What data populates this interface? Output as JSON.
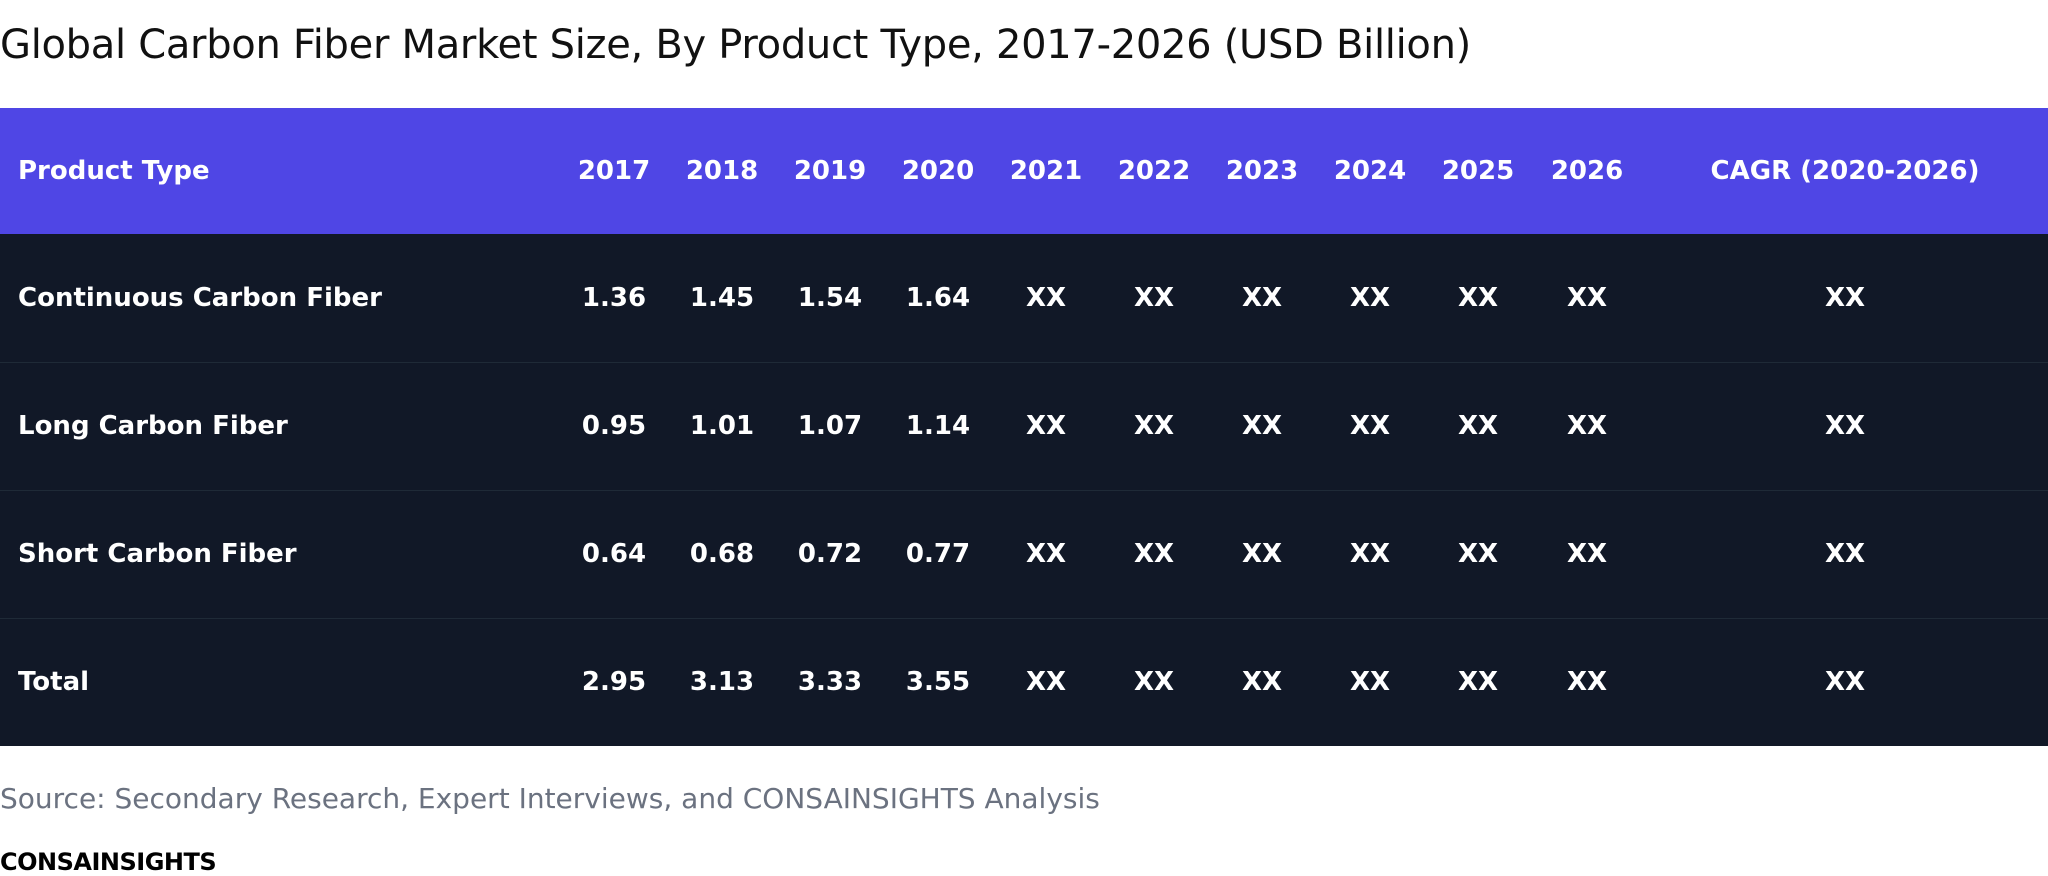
{
  "title": "Global Carbon Fiber Market Size, By Product Type, 2017-2026 (USD Billion)",
  "colors": {
    "header_bg": "#4f46e5",
    "body_bg": "#111827",
    "text_light": "#ffffff",
    "source_text": "#6b7280"
  },
  "table": {
    "headers": [
      "Product Type",
      "2017",
      "2018",
      "2019",
      "2020",
      "2021",
      "2022",
      "2023",
      "2024",
      "2025",
      "2026",
      "CAGR (2020-2026)"
    ],
    "rows": [
      [
        "Continuous Carbon Fiber",
        "1.36",
        "1.45",
        "1.54",
        "1.64",
        "XX",
        "XX",
        "XX",
        "XX",
        "XX",
        "XX",
        "XX"
      ],
      [
        "Long Carbon Fiber",
        "0.95",
        "1.01",
        "1.07",
        "1.14",
        "XX",
        "XX",
        "XX",
        "XX",
        "XX",
        "XX",
        "XX"
      ],
      [
        "Short Carbon Fiber",
        "0.64",
        "0.68",
        "0.72",
        "0.77",
        "XX",
        "XX",
        "XX",
        "XX",
        "XX",
        "XX",
        "XX"
      ],
      [
        "Total",
        "2.95",
        "3.13",
        "3.33",
        "3.55",
        "XX",
        "XX",
        "XX",
        "XX",
        "XX",
        "XX",
        "XX"
      ]
    ]
  },
  "source": "Source: Secondary Research, Expert Interviews, and CONSAINSIGHTS Analysis",
  "brand": "CONSAINSIGHTS"
}
